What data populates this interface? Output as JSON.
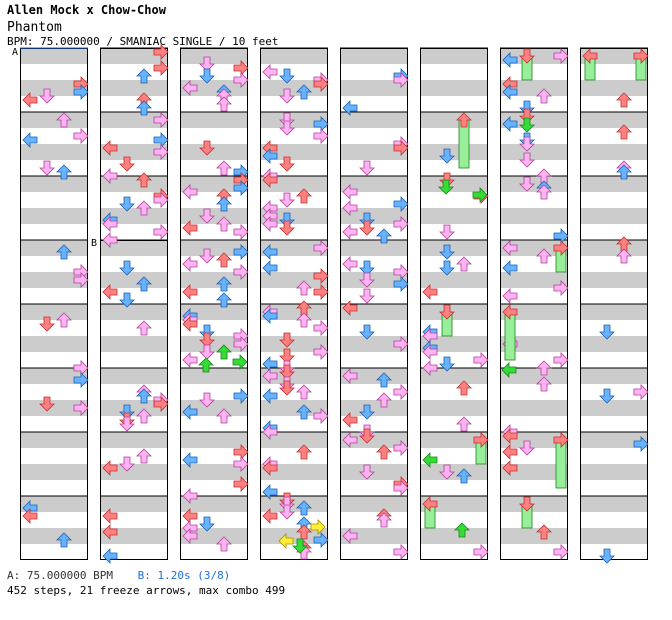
{
  "header": {
    "title": "Allen Mock x Chow-Chow",
    "subtitle": "Phantom",
    "info": "BPM: 75.000000 / SMANIAC SINGLE / 10 feet"
  },
  "footer": {
    "bpm_line": "A: 75.000000 BPM",
    "stop_line": "B: 1.20s (3/8)",
    "stats": "452 steps, 21 freeze arrows, max combo 499"
  },
  "markers": {
    "a_label": "A",
    "b_label": "B"
  },
  "colors": {
    "quarter_red": "#ff8080",
    "eighth_blue": "#66b3ff",
    "sixteenth_pink": "#ffb3f0",
    "freeze_green": "#99ee99",
    "freeze_arrow_green": "#33dd33",
    "yellow": "#ffee33",
    "stripe_gray": "#cccccc",
    "border": "#000000"
  },
  "chart": {
    "columns": 8,
    "measures_per_column": 8,
    "lanes": [
      "left",
      "down",
      "up",
      "right"
    ]
  }
}
